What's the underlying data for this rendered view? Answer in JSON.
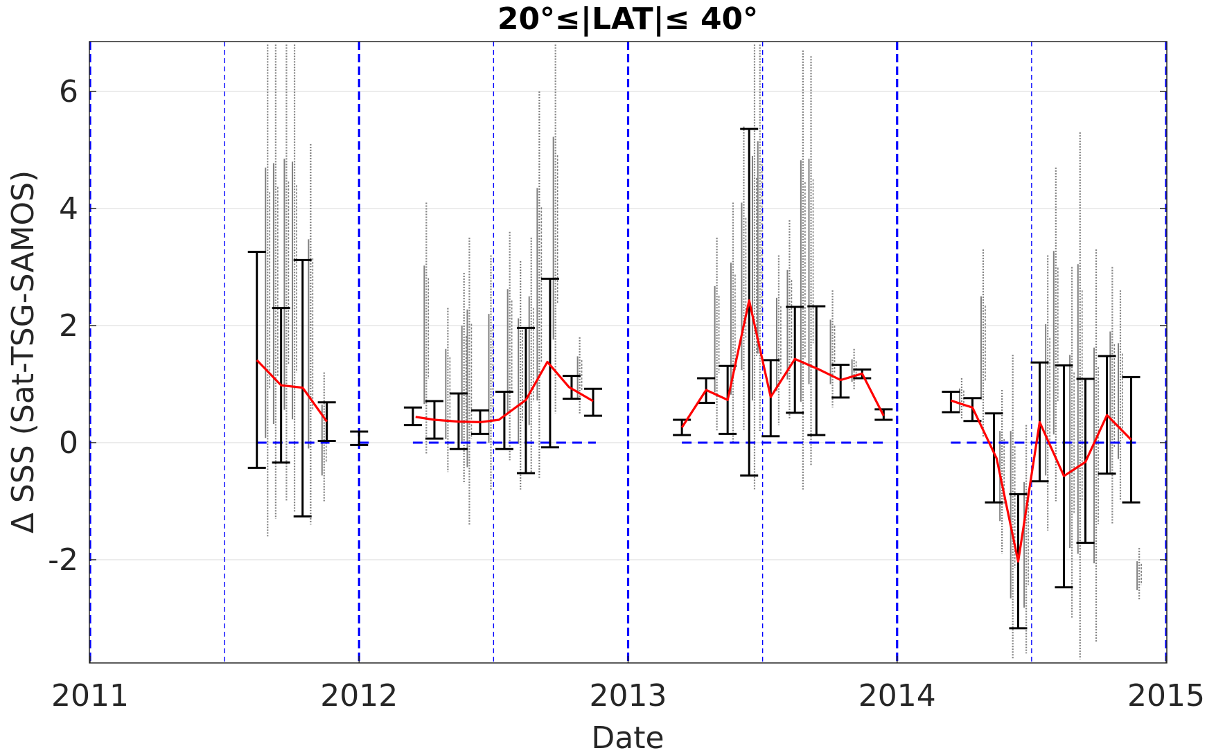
{
  "chart_data": {
    "type": "line",
    "title": "20°≤|LAT|≤ 40°",
    "xlabel": "Date",
    "ylabel": "Δ SSS (Sat-TSG-SAMOS)",
    "xlim": [
      2011.0,
      2015.0
    ],
    "ylim": [
      -3.7,
      6.8
    ],
    "x_ticks": [
      2011,
      2012,
      2013,
      2014,
      2015
    ],
    "x_tick_labels": [
      "2011",
      "2012",
      "2013",
      "2014",
      "2015"
    ],
    "y_ticks": [
      -2,
      0,
      2,
      4,
      6
    ],
    "y_tick_labels": [
      "-2",
      "0",
      "2",
      "4",
      "6"
    ],
    "grid": "horizontal",
    "legend": "none",
    "colors": {
      "mean_line": "#ff0000",
      "error_bars": "#000000",
      "raw_points": "#808080",
      "reference_lines": "#0000ff",
      "grid": "#e0e0e0",
      "axes": "#262626"
    },
    "year_boundaries": [
      2011.0,
      2012.0,
      2013.0,
      2014.0,
      2015.0
    ],
    "half_year_markers": [
      2011.5,
      2012.5,
      2013.5,
      2014.5
    ],
    "zero_segments": [
      [
        2011.62,
        2011.89
      ],
      [
        2012.0,
        2012.05
      ],
      [
        2012.2,
        2012.88
      ],
      [
        2013.2,
        2013.95
      ],
      [
        2014.2,
        2014.9
      ]
    ],
    "series": [
      {
        "type": "line",
        "x": [
          2011.62,
          2011.71,
          2011.79,
          2011.88
        ],
        "y": [
          1.41,
          0.98,
          0.94,
          0.36
        ]
      },
      {
        "type": "line",
        "x": [
          2012.21,
          2012.28,
          2012.37,
          2012.45,
          2012.52,
          2012.62,
          2012.7,
          2012.78,
          2012.87
        ],
        "y": [
          0.44,
          0.39,
          0.36,
          0.35,
          0.39,
          0.73,
          1.38,
          0.95,
          0.71
        ]
      },
      {
        "type": "line",
        "x": [
          2013.2,
          2013.29,
          2013.37,
          2013.45,
          2013.53,
          2013.62,
          2013.71,
          2013.79,
          2013.87,
          2013.95
        ],
        "y": [
          0.26,
          0.9,
          0.73,
          2.43,
          0.78,
          1.43,
          1.25,
          1.07,
          1.18,
          0.46
        ]
      },
      {
        "type": "line",
        "x": [
          2014.2,
          2014.28,
          2014.37,
          2014.45,
          2014.53,
          2014.62,
          2014.7,
          2014.78,
          2014.87
        ],
        "y": [
          0.72,
          0.6,
          -0.27,
          -2.03,
          0.35,
          -0.57,
          -0.33,
          0.47,
          0.05
        ]
      }
    ],
    "error_bars": [
      {
        "x": 2011.62,
        "low": -0.43,
        "high": 3.26
      },
      {
        "x": 2011.71,
        "low": -0.34,
        "high": 2.3
      },
      {
        "x": 2011.79,
        "low": -1.26,
        "high": 3.12
      },
      {
        "x": 2011.88,
        "low": 0.03,
        "high": 0.69
      },
      {
        "x": 2012.0,
        "low": -0.04,
        "high": 0.19
      },
      {
        "x": 2012.2,
        "low": 0.3,
        "high": 0.6
      },
      {
        "x": 2012.28,
        "low": 0.07,
        "high": 0.71
      },
      {
        "x": 2012.37,
        "low": -0.11,
        "high": 0.84
      },
      {
        "x": 2012.45,
        "low": 0.15,
        "high": 0.55
      },
      {
        "x": 2012.54,
        "low": -0.11,
        "high": 0.87
      },
      {
        "x": 2012.62,
        "low": -0.52,
        "high": 1.96
      },
      {
        "x": 2012.71,
        "low": -0.08,
        "high": 2.8
      },
      {
        "x": 2012.79,
        "low": 0.75,
        "high": 1.14
      },
      {
        "x": 2012.87,
        "low": 0.46,
        "high": 0.92
      },
      {
        "x": 2013.2,
        "low": 0.13,
        "high": 0.39
      },
      {
        "x": 2013.29,
        "low": 0.68,
        "high": 1.1
      },
      {
        "x": 2013.37,
        "low": 0.15,
        "high": 1.31
      },
      {
        "x": 2013.45,
        "low": -0.56,
        "high": 5.36
      },
      {
        "x": 2013.53,
        "low": 0.11,
        "high": 1.41
      },
      {
        "x": 2013.62,
        "low": 0.51,
        "high": 2.32
      },
      {
        "x": 2013.7,
        "low": 0.13,
        "high": 2.33
      },
      {
        "x": 2013.79,
        "low": 0.77,
        "high": 1.33
      },
      {
        "x": 2013.87,
        "low": 1.1,
        "high": 1.25
      },
      {
        "x": 2013.95,
        "low": 0.39,
        "high": 0.57
      },
      {
        "x": 2014.2,
        "low": 0.52,
        "high": 0.87
      },
      {
        "x": 2014.28,
        "low": 0.37,
        "high": 0.76
      },
      {
        "x": 2014.36,
        "low": -1.02,
        "high": 0.5
      },
      {
        "x": 2014.45,
        "low": -3.17,
        "high": -0.88
      },
      {
        "x": 2014.53,
        "low": -0.66,
        "high": 1.37
      },
      {
        "x": 2014.62,
        "low": -2.47,
        "high": 1.32
      },
      {
        "x": 2014.7,
        "low": -1.71,
        "high": 1.09
      },
      {
        "x": 2014.78,
        "low": -0.53,
        "high": 1.48
      },
      {
        "x": 2014.87,
        "low": -1.02,
        "high": 1.12
      }
    ],
    "scatter_clusters": [
      {
        "x": 2011.66,
        "low": -1.6,
        "high": 6.8
      },
      {
        "x": 2011.69,
        "low": -1.3,
        "high": 6.8
      },
      {
        "x": 2011.73,
        "low": -1.0,
        "high": 6.8
      },
      {
        "x": 2011.76,
        "low": -1.2,
        "high": 6.8
      },
      {
        "x": 2011.82,
        "low": -1.4,
        "high": 5.1
      },
      {
        "x": 2011.87,
        "low": -1.0,
        "high": 1.2
      },
      {
        "x": 2012.25,
        "low": -0.2,
        "high": 4.1
      },
      {
        "x": 2012.33,
        "low": -0.5,
        "high": 2.3
      },
      {
        "x": 2012.39,
        "low": -0.7,
        "high": 2.9
      },
      {
        "x": 2012.41,
        "low": -1.4,
        "high": 3.5
      },
      {
        "x": 2012.49,
        "low": -0.8,
        "high": 3.2
      },
      {
        "x": 2012.56,
        "low": -0.3,
        "high": 3.6
      },
      {
        "x": 2012.6,
        "low": -0.8,
        "high": 3.1
      },
      {
        "x": 2012.64,
        "low": -0.5,
        "high": 3.5
      },
      {
        "x": 2012.67,
        "low": -0.6,
        "high": 6.0
      },
      {
        "x": 2012.73,
        "low": 0.5,
        "high": 6.8
      },
      {
        "x": 2012.82,
        "low": 0.5,
        "high": 1.8
      },
      {
        "x": 2013.33,
        "low": 0.2,
        "high": 3.5
      },
      {
        "x": 2013.39,
        "low": 0.0,
        "high": 4.1
      },
      {
        "x": 2013.43,
        "low": 0.2,
        "high": 5.4
      },
      {
        "x": 2013.47,
        "low": -0.8,
        "high": 6.8
      },
      {
        "x": 2013.49,
        "low": 0.2,
        "high": 6.8
      },
      {
        "x": 2013.56,
        "low": 0.3,
        "high": 3.2
      },
      {
        "x": 2013.6,
        "low": 0.4,
        "high": 3.8
      },
      {
        "x": 2013.65,
        "low": -0.8,
        "high": 6.7
      },
      {
        "x": 2013.68,
        "low": -0.4,
        "high": 6.6
      },
      {
        "x": 2013.76,
        "low": 0.6,
        "high": 2.6
      },
      {
        "x": 2013.84,
        "low": 0.9,
        "high": 1.6
      },
      {
        "x": 2014.24,
        "low": 0.4,
        "high": 1.1
      },
      {
        "x": 2014.32,
        "low": 0.1,
        "high": 3.3
      },
      {
        "x": 2014.39,
        "low": -1.9,
        "high": 0.9
      },
      {
        "x": 2014.43,
        "low": -3.7,
        "high": 1.5
      },
      {
        "x": 2014.48,
        "low": -3.6,
        "high": 0.3
      },
      {
        "x": 2014.56,
        "low": -1.5,
        "high": 3.2
      },
      {
        "x": 2014.59,
        "low": -1.0,
        "high": 4.7
      },
      {
        "x": 2014.65,
        "low": -3.0,
        "high": 3.0
      },
      {
        "x": 2014.68,
        "low": -3.7,
        "high": 5.3
      },
      {
        "x": 2014.74,
        "low": -3.4,
        "high": 3.3
      },
      {
        "x": 2014.8,
        "low": -1.4,
        "high": 3.0
      },
      {
        "x": 2014.83,
        "low": -1.0,
        "high": 2.6
      },
      {
        "x": 2014.9,
        "low": -2.7,
        "high": -1.8
      }
    ]
  }
}
